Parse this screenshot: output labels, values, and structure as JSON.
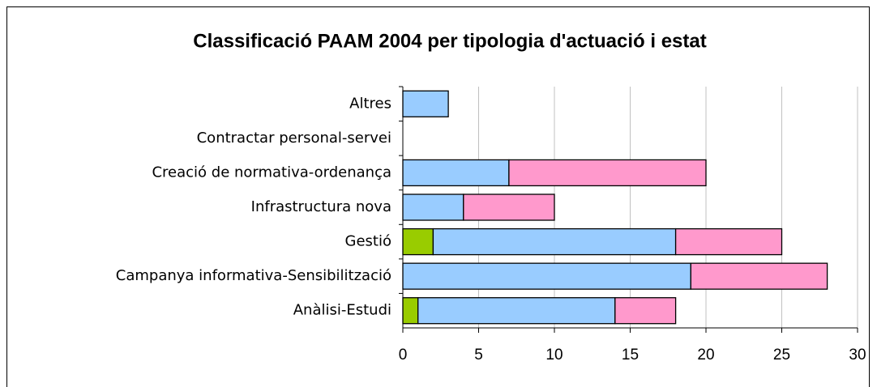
{
  "chart_data": {
    "type": "stacked_barh",
    "title": "Classificació PAAM 2004 per tipologia d'actuació i estat",
    "categories": [
      "Altres",
      "Contractar personal-servei",
      "Creació de normativa-ordenança",
      "Infrastructura nova",
      "Gestió",
      "Campanya informativa-Sensibilització",
      "Anàlisi-Estudi"
    ],
    "series": [
      {
        "color": "#99cc00",
        "values": [
          0,
          0,
          0,
          0,
          2,
          0,
          1
        ]
      },
      {
        "color": "#99ccff",
        "values": [
          3,
          0,
          7,
          4,
          16,
          19,
          13
        ]
      },
      {
        "color": "#ff99cc",
        "values": [
          0,
          0,
          13,
          6,
          7,
          9,
          4
        ]
      }
    ],
    "xlim": [
      0,
      30
    ],
    "xticks": [
      0,
      5,
      10,
      15,
      20,
      25,
      30
    ],
    "grid": true
  }
}
